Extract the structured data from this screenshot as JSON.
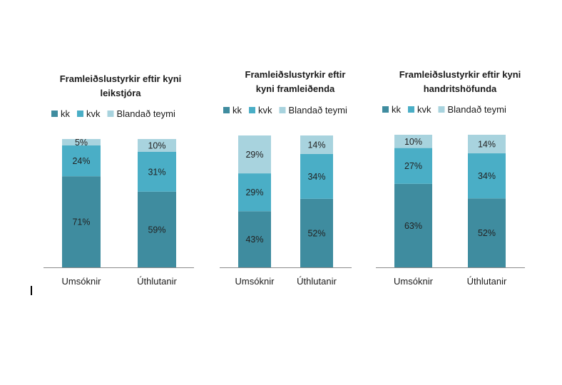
{
  "colors": {
    "kk": "#3f8c9f",
    "kvk": "#4aaec6",
    "blandad": "#a8d3de",
    "axis": "#8a8a8a"
  },
  "chart_data": [
    {
      "type": "bar",
      "stacked": true,
      "title": "Framleiðslustyrkir eftir kyni leikstjóra",
      "title_lines": [
        "Framleiðslustyrkir eftir kyni",
        "leikstjóra"
      ],
      "categories": [
        "Umsóknir",
        "Úthlutanir"
      ],
      "series": [
        {
          "name": "kk",
          "values": [
            71,
            59
          ]
        },
        {
          "name": "kvk",
          "values": [
            24,
            31
          ]
        },
        {
          "name": "Blandað teymi",
          "values": [
            5,
            10
          ]
        }
      ],
      "data_labels": [
        [
          "71%",
          "24%",
          "5%"
        ],
        [
          "59%",
          "31%",
          "10%"
        ]
      ],
      "ylim": [
        0,
        100
      ],
      "legend": "top",
      "grid": false
    },
    {
      "type": "bar",
      "stacked": true,
      "title": "Framleiðslustyrkir eftir kyni framleiðenda",
      "title_lines": [
        "Framleiðslustyrkir eftir",
        "kyni framleiðenda"
      ],
      "categories": [
        "Umsóknir",
        "Úthlutanir"
      ],
      "series": [
        {
          "name": "kk",
          "values": [
            43,
            52
          ]
        },
        {
          "name": "kvk",
          "values": [
            29,
            34
          ]
        },
        {
          "name": "Blandað teymi",
          "values": [
            29,
            14
          ]
        }
      ],
      "data_labels": [
        [
          "43%",
          "29%",
          "29%"
        ],
        [
          "52%",
          "34%",
          "14%"
        ]
      ],
      "ylim": [
        0,
        100
      ],
      "legend": "top",
      "grid": false
    },
    {
      "type": "bar",
      "stacked": true,
      "title": "Framleiðslustyrkir eftir kyni handritshöfunda",
      "title_lines": [
        "Framleiðslustyrkir eftir kyni",
        "handritshöfunda"
      ],
      "categories": [
        "Umsóknir",
        "Úthlutanir"
      ],
      "series": [
        {
          "name": "kk",
          "values": [
            63,
            52
          ]
        },
        {
          "name": "kvk",
          "values": [
            27,
            34
          ]
        },
        {
          "name": "Blandað teymi",
          "values": [
            10,
            14
          ]
        }
      ],
      "data_labels": [
        [
          "63%",
          "27%",
          "10%"
        ],
        [
          "52%",
          "34%",
          "14%"
        ]
      ],
      "ylim": [
        0,
        100
      ],
      "legend": "top",
      "grid": false
    }
  ]
}
